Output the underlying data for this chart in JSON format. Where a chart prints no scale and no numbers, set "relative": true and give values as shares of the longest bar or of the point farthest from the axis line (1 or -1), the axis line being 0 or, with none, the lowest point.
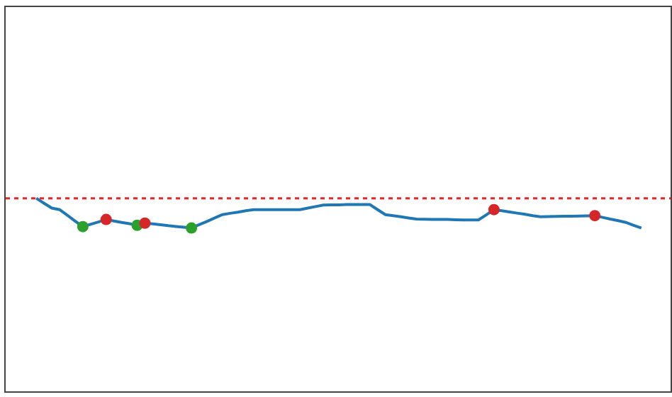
{
  "chart_data": {
    "type": "line",
    "relative": true,
    "categories": [
      null,
      null,
      null,
      null,
      null,
      null,
      null,
      null,
      null,
      null,
      null,
      null,
      null,
      null,
      null,
      null,
      null,
      null,
      null,
      null,
      null,
      null,
      null,
      null,
      null,
      null,
      null,
      null,
      null,
      null,
      null,
      null,
      null,
      null,
      null,
      null,
      null,
      null,
      null,
      null,
      null,
      null,
      null,
      null,
      null,
      null,
      null,
      null,
      null,
      null,
      null,
      null,
      null,
      null,
      null,
      null,
      null,
      null,
      null,
      null,
      null,
      null,
      null,
      null,
      null,
      null,
      null,
      null,
      null,
      null,
      null,
      null,
      null,
      null,
      null,
      null,
      null,
      null,
      null
    ],
    "series": [
      {
        "color": "#1f77b4",
        "values": [
          1.0,
          0.974,
          0.949,
          0.941,
          0.912,
          0.882,
          0.853,
          0.865,
          0.877,
          0.89,
          0.882,
          0.875,
          0.868,
          0.86,
          0.871,
          0.867,
          0.863,
          0.858,
          0.854,
          0.85,
          0.846,
          0.863,
          0.88,
          0.898,
          0.915,
          0.922,
          0.928,
          0.935,
          0.941,
          0.941,
          0.941,
          0.941,
          0.941,
          0.941,
          0.941,
          0.949,
          0.957,
          0.965,
          0.966,
          0.966,
          0.967,
          0.967,
          0.967,
          0.967,
          0.941,
          0.915,
          0.91,
          0.904,
          0.898,
          0.892,
          0.891,
          0.89,
          0.89,
          0.89,
          0.889,
          0.888,
          0.888,
          0.888,
          0.914,
          0.941,
          0.935,
          0.929,
          0.923,
          0.917,
          0.91,
          0.904,
          0.905,
          0.906,
          0.907,
          0.907,
          0.908,
          0.909,
          0.91,
          0.901,
          0.892,
          0.884,
          0.875,
          0.86,
          0.846
        ],
        "colors": [
          null,
          null,
          null,
          null,
          null,
          null,
          "#2ca02c",
          null,
          null,
          "#d62728",
          null,
          null,
          null,
          "#2ca02c",
          "#d62728",
          null,
          null,
          null,
          null,
          null,
          "#2ca02c",
          null,
          null,
          null,
          null,
          null,
          null,
          null,
          null,
          null,
          null,
          null,
          null,
          null,
          null,
          null,
          null,
          null,
          null,
          null,
          null,
          null,
          null,
          null,
          null,
          null,
          null,
          null,
          null,
          null,
          null,
          null,
          null,
          null,
          null,
          null,
          null,
          null,
          null,
          "#d62728",
          null,
          null,
          null,
          null,
          null,
          null,
          null,
          null,
          null,
          null,
          null,
          null,
          "#d62728",
          null,
          null,
          null,
          null,
          null,
          null
        ]
      }
    ],
    "ref_lines": [
      {
        "axis": "y",
        "value": 1.0,
        "color": "#e8262a",
        "line_style": "dotted"
      }
    ],
    "tick_labels": false
  }
}
